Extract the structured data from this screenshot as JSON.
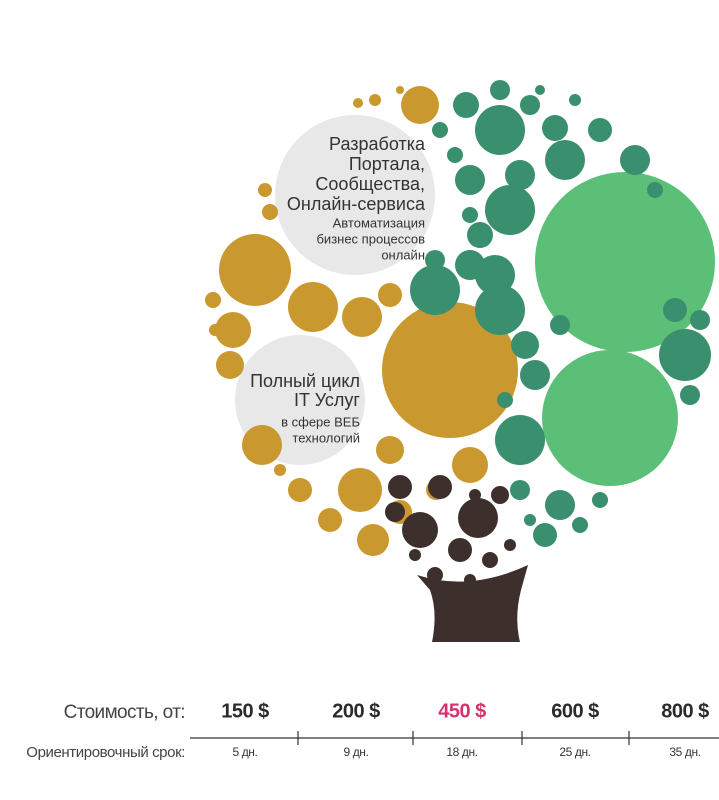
{
  "bubble_top": {
    "title_lines": [
      "Разработка",
      "Портала,",
      "Сообщества,",
      "Онлайн-сервиса"
    ],
    "subtitle_lines": [
      "Автоматизация",
      "бизнес процессов",
      "онлайн"
    ]
  },
  "bubble_bottom": {
    "title_lines": [
      "Полный цикл",
      "IT Услуг"
    ],
    "subtitle_lines": [
      "в сфере ВЕБ",
      "технологий"
    ]
  },
  "table": {
    "price_label": "Стоимость, от:",
    "prices": [
      {
        "text": "150 $",
        "color": "#2b2b2b"
      },
      {
        "text": "200 $",
        "color": "#2b2b2b"
      },
      {
        "text": "450 $",
        "color": "#d6336c"
      },
      {
        "text": "600 $",
        "color": "#2b2b2b"
      },
      {
        "text": "800 $",
        "color": "#2b2b2b"
      }
    ],
    "term_label": "Ориентировочный срок:",
    "terms": [
      "5 дн.",
      "9 дн.",
      "18 дн.",
      "25 дн.",
      "35 дн."
    ]
  }
}
